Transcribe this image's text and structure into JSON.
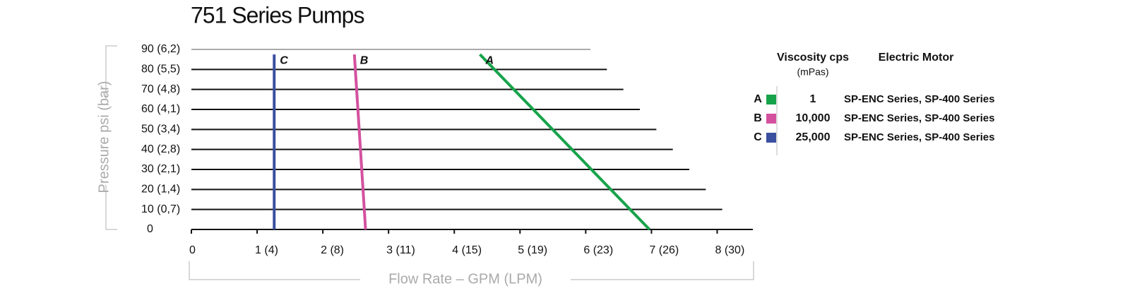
{
  "chart_data": {
    "type": "line",
    "title": "751 Series Pumps",
    "x_label": "Flow Rate – GPM (LPM)",
    "y_label": "Pressure psi (bar)",
    "xlim": [
      0,
      8.5
    ],
    "ylim": [
      0,
      90
    ],
    "xticks": [
      0,
      {
        "value": 1,
        "label": "1 (4)"
      },
      {
        "value": 2,
        "label": "2 (8)"
      },
      {
        "value": 3,
        "label": "3 (11)"
      },
      {
        "value": 4,
        "label": "4 (15)"
      },
      {
        "value": 5,
        "label": "5 (19)"
      },
      {
        "value": 6,
        "label": "6 (23)"
      },
      {
        "value": 7,
        "label": "7 (26)"
      },
      {
        "value": 8,
        "label": "8 (30)"
      }
    ],
    "yticks": [
      0,
      {
        "value": 10,
        "label": "10 (0,7)"
      },
      {
        "value": 20,
        "label": "20 (1,4)"
      },
      {
        "value": 30,
        "label": "30 (2,1)"
      },
      {
        "value": 40,
        "label": "40 (2,8)"
      },
      {
        "value": 50,
        "label": "50 (3,4)"
      },
      {
        "value": 60,
        "label": "60 (4,1)"
      },
      {
        "value": 70,
        "label": "70 (4,8)"
      },
      {
        "value": 80,
        "label": "80 (5,5)"
      },
      {
        "value": 90,
        "label": "90 (6,2)"
      }
    ],
    "grid": true,
    "legend_header": {
      "viscosity": "Viscosity cps",
      "viscosity_unit": "(mPas)",
      "motor": "Electric Motor"
    },
    "series": [
      {
        "name": "A",
        "color": "#17a34a",
        "viscosity": "1",
        "motor": "SP-ENC Series, SP-400 Series",
        "x": [
          6.97,
          4.39
        ],
        "values": [
          0,
          87.5
        ]
      },
      {
        "name": "B",
        "color": "#d4519f",
        "viscosity": "10,000",
        "motor": "SP-ENC Series, SP-400 Series",
        "x": [
          2.65,
          2.48
        ],
        "values": [
          0,
          87.5
        ]
      },
      {
        "name": "C",
        "color": "#3a4fa0",
        "viscosity": "25,000",
        "motor": "SP-ENC Series, SP-400 Series",
        "x": [
          1.26,
          1.26
        ],
        "values": [
          0,
          87.5
        ]
      }
    ]
  }
}
